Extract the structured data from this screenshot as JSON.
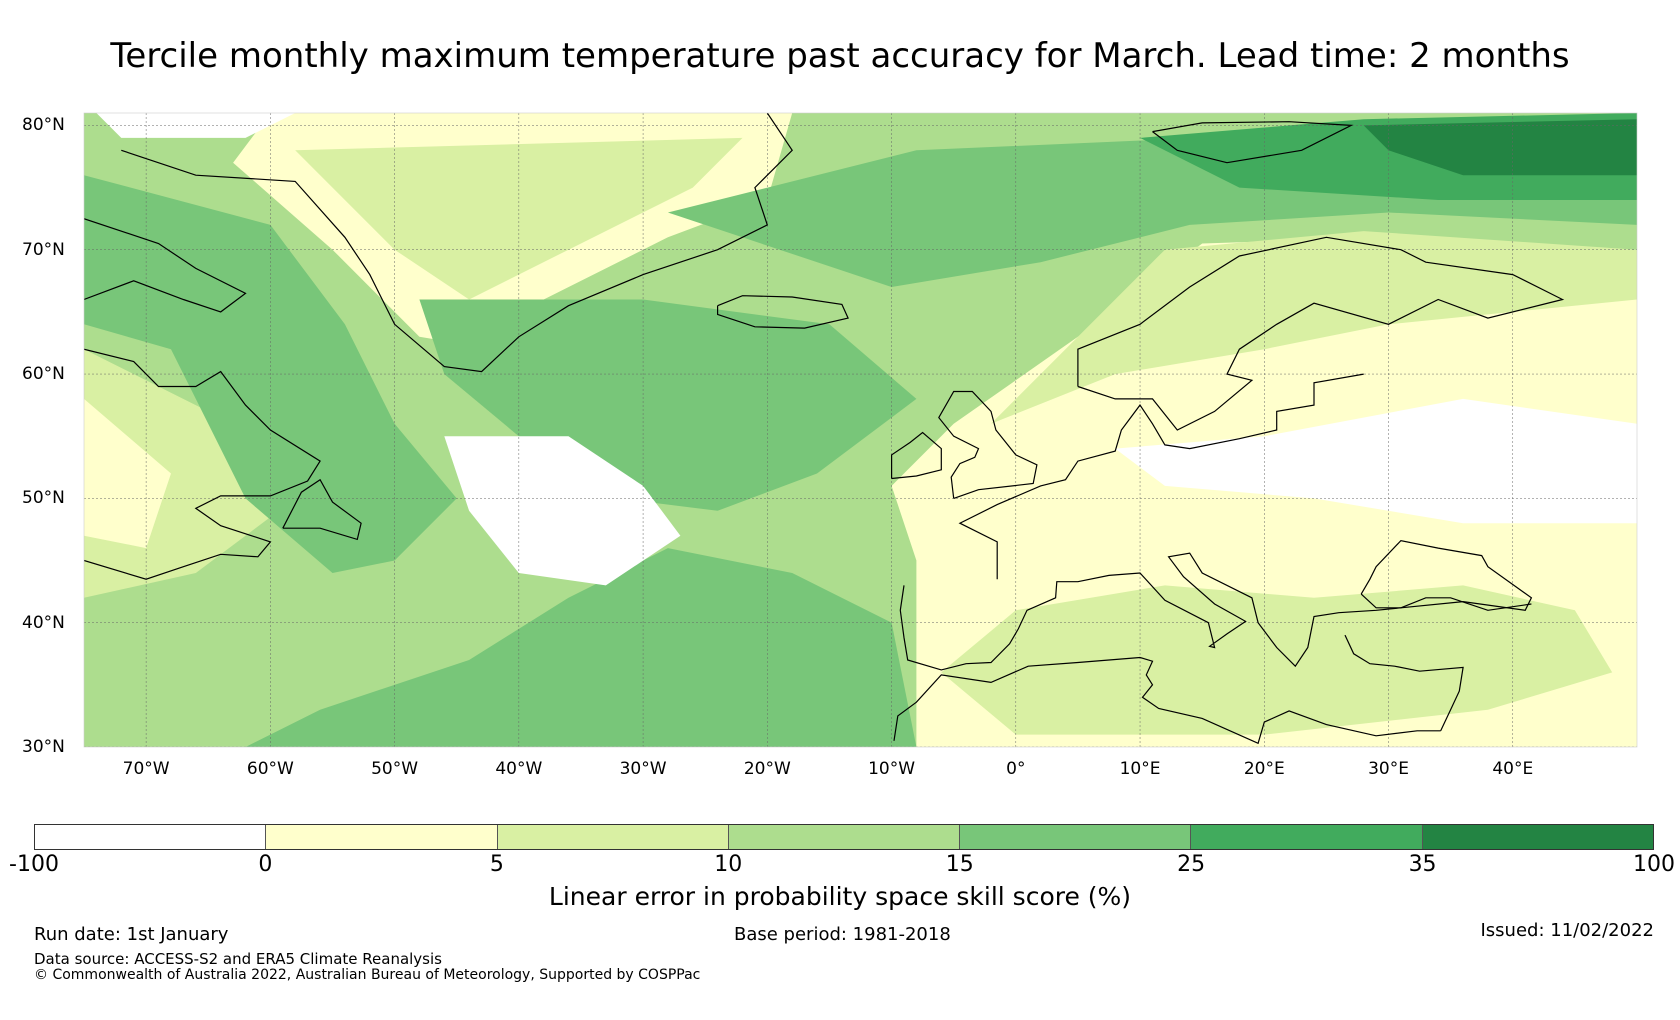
{
  "title": "Tercile monthly maximum temperature past accuracy for March. Lead time: 2 months",
  "map": {
    "extent": {
      "lon": [
        -75,
        50
      ],
      "lat": [
        30,
        81
      ]
    },
    "lat_labels": [
      "80°N",
      "70°N",
      "60°N",
      "50°N",
      "40°N",
      "30°N"
    ],
    "lat_values": [
      80,
      70,
      60,
      50,
      40,
      30
    ],
    "lon_labels": [
      "70°W",
      "60°W",
      "50°W",
      "40°W",
      "30°W",
      "20°W",
      "10°W",
      "0°",
      "10°E",
      "20°E",
      "30°E",
      "40°E"
    ],
    "lon_values": [
      -70,
      -60,
      -50,
      -40,
      -30,
      -20,
      -10,
      0,
      10,
      20,
      30,
      40
    ],
    "regions": [
      "Greenland",
      "Iceland",
      "North Atlantic",
      "Europe",
      "Mediterranean",
      "North Africa",
      "Canada"
    ]
  },
  "colorbar": {
    "ticks": [
      "-100",
      "0",
      "5",
      "10",
      "15",
      "25",
      "35",
      "100"
    ],
    "colors": [
      "#ffffff",
      "#ffffcc",
      "#d9f0a3",
      "#addd8e",
      "#78c679",
      "#41ab5d",
      "#238443"
    ],
    "label": "Linear error in probability space skill score (%)"
  },
  "footer": {
    "run_date": "Run date: 1st January",
    "base_period": "Base period: 1981-2018",
    "issued": "Issued: 11/02/2022",
    "data_source": "Data source: ACCESS-S2 and ERA5 Climate Reanalysis",
    "copyright": "© Commonwealth of Australia 2022, Australian Bureau of Meteorology, Supported by COSPPac"
  }
}
